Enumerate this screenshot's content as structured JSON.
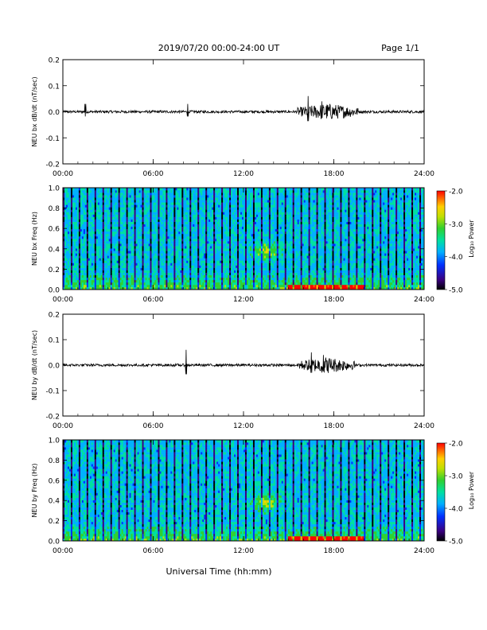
{
  "header": {
    "title": "2019/07/20  00:00-24:00 UT",
    "page": "Page 1/1"
  },
  "footer": {
    "xlabel": "Universal Time (hh:mm)"
  },
  "colorbar": {
    "label": "Log₁₀ Power",
    "ticks": [
      "-2.0",
      "-3.0",
      "-4.0",
      "-5.0"
    ],
    "range": [
      -5.0,
      -2.0
    ],
    "colors": [
      "#000000",
      "#3a0080",
      "#0030ff",
      "#00b0ff",
      "#00e0a0",
      "#30d030",
      "#c0e000",
      "#ffd000",
      "#ff6000",
      "#ff0000"
    ]
  },
  "chart_data": [
    {
      "type": "line",
      "id": "bx_waveform",
      "ylabel": "NEU bx dB/dt (nT/sec)",
      "xlim": [
        0,
        24
      ],
      "ylim": [
        -0.2,
        0.2
      ],
      "x_ticks": [
        "00:00",
        "06:00",
        "12:00",
        "18:00",
        "24:00"
      ],
      "y_ticks": [
        "0.2",
        "0.1",
        "0.0",
        "-0.1",
        "-0.2"
      ],
      "events": [
        {
          "hour": 1.5,
          "amplitude": 0.03
        },
        {
          "hour": 8.3,
          "amplitude": 0.03
        },
        {
          "hour": 16.3,
          "amplitude": 0.06
        },
        {
          "hour": 17.2,
          "amplitude": 0.04
        }
      ],
      "active_interval": [
        15.6,
        19.6
      ],
      "baseline_amplitude": 0.005
    },
    {
      "type": "heatmap",
      "id": "bx_spectrogram",
      "ylabel": "NEU bx Freq (Hz)",
      "xlim": [
        0,
        24
      ],
      "ylim": [
        0.0,
        1.0
      ],
      "x_ticks": [
        "00:00",
        "06:00",
        "12:00",
        "18:00",
        "24:00"
      ],
      "y_ticks": [
        "1.0",
        "0.8",
        "0.6",
        "0.4",
        "0.2",
        "0.0"
      ],
      "zrange": [
        -5.0,
        -2.0
      ],
      "hotspot": {
        "hour": 13.5,
        "freq": 0.38
      },
      "low_freq_enhancement": [
        15.0,
        20.0
      ]
    },
    {
      "type": "line",
      "id": "by_waveform",
      "ylabel": "NEU by dB/dt (nT/sec)",
      "xlim": [
        0,
        24
      ],
      "ylim": [
        -0.2,
        0.2
      ],
      "x_ticks": [
        "00:00",
        "06:00",
        "12:00",
        "18:00",
        "24:00"
      ],
      "y_ticks": [
        "0.2",
        "0.1",
        "0.0",
        "-0.1",
        "-0.2"
      ],
      "events": [
        {
          "hour": 8.2,
          "amplitude": 0.06
        },
        {
          "hour": 16.5,
          "amplitude": 0.05
        },
        {
          "hour": 17.3,
          "amplitude": 0.04
        }
      ],
      "active_interval": [
        15.6,
        19.4
      ],
      "baseline_amplitude": 0.005
    },
    {
      "type": "heatmap",
      "id": "by_spectrogram",
      "ylabel": "NEU by Freq (Hz)",
      "xlim": [
        0,
        24
      ],
      "ylim": [
        0.0,
        1.0
      ],
      "x_ticks": [
        "00:00",
        "06:00",
        "12:00",
        "18:00",
        "24:00"
      ],
      "y_ticks": [
        "1.0",
        "0.8",
        "0.6",
        "0.4",
        "0.2",
        "0.0"
      ],
      "zrange": [
        -5.0,
        -2.0
      ],
      "hotspot": {
        "hour": 13.5,
        "freq": 0.38
      },
      "low_freq_enhancement": [
        15.0,
        20.0
      ]
    }
  ]
}
